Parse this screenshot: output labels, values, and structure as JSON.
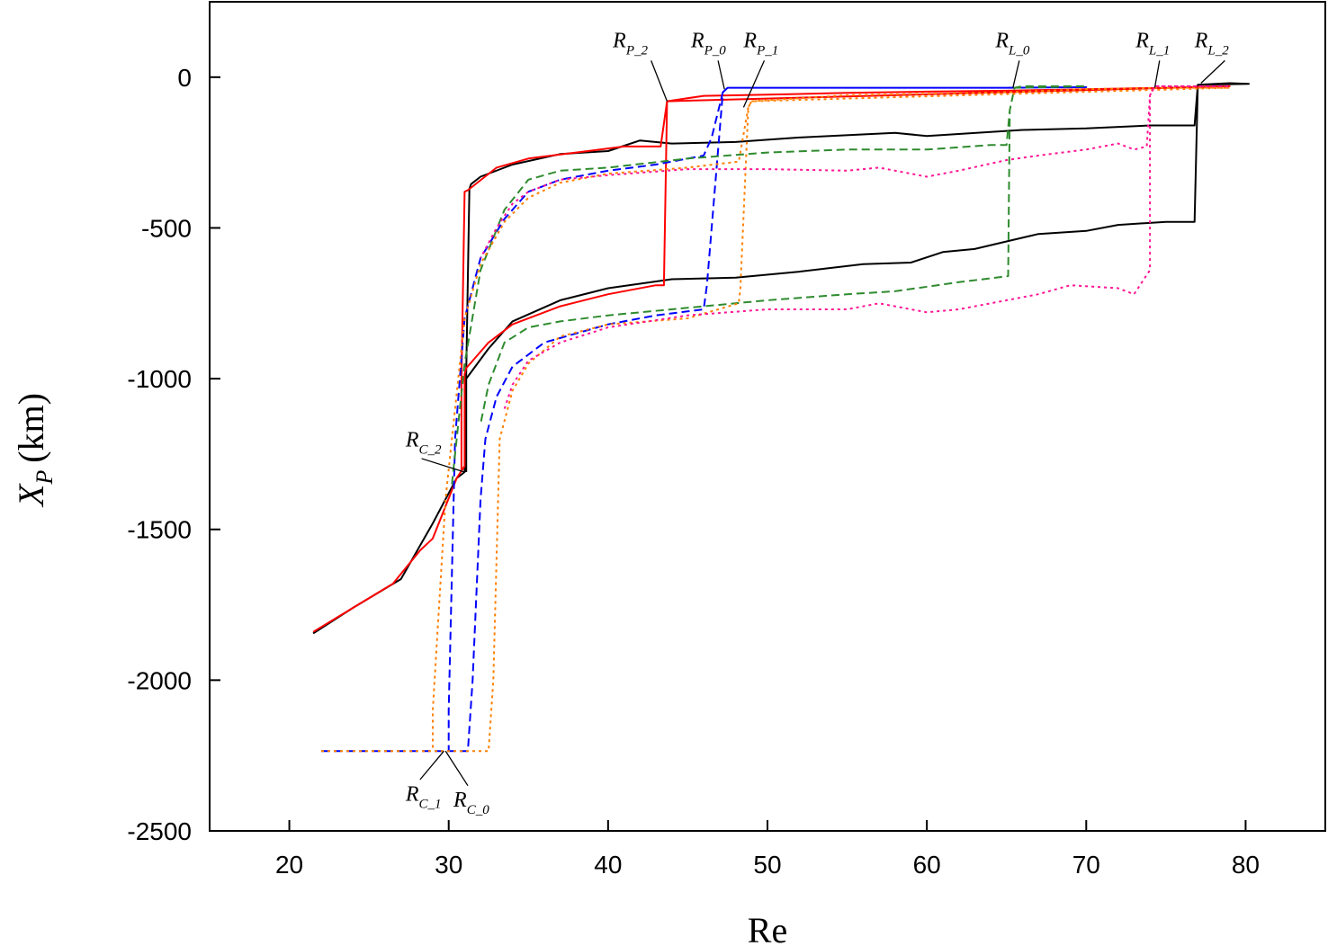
{
  "chart_data": {
    "type": "line",
    "xlabel": "Re",
    "ylabel_main": "X",
    "ylabel_sub": "P",
    "ylabel_unit": "(km)",
    "xlim": [
      15,
      85
    ],
    "ylim": [
      -2500,
      250
    ],
    "x_ticks": [
      20,
      30,
      40,
      50,
      60,
      70,
      80
    ],
    "y_ticks": [
      0,
      -500,
      -1000,
      -1500,
      -2000,
      -2500
    ],
    "x_tick_labels": [
      "20",
      "30",
      "40",
      "50",
      "60",
      "70",
      "80"
    ],
    "y_tick_labels": [
      "0",
      "-500",
      "-1000",
      "-1500",
      "-2000",
      "-2500"
    ],
    "grid": false,
    "legend": "none",
    "series": [
      {
        "color": "#000000",
        "dash": "solid",
        "points": [
          [
            21.5,
            -1845
          ],
          [
            24,
            -1760
          ],
          [
            27,
            -1665
          ],
          [
            29,
            -1480
          ],
          [
            30.5,
            -1330
          ],
          [
            31,
            -1310
          ],
          [
            31.1,
            -980
          ],
          [
            31.3,
            -370
          ],
          [
            31.4,
            -355
          ],
          [
            32,
            -330
          ],
          [
            34,
            -290
          ],
          [
            37,
            -255
          ],
          [
            40,
            -245
          ],
          [
            42,
            -210
          ],
          [
            44,
            -220
          ],
          [
            48,
            -215
          ],
          [
            52,
            -200
          ],
          [
            58,
            -185
          ],
          [
            60,
            -195
          ],
          [
            66,
            -175
          ],
          [
            70,
            -170
          ],
          [
            74,
            -160
          ],
          [
            76.8,
            -160
          ],
          [
            77,
            -25
          ],
          [
            79,
            -20
          ],
          [
            80.2,
            -22
          ],
          [
            77,
            -25
          ],
          [
            76.8,
            -480
          ],
          [
            75,
            -480
          ],
          [
            72,
            -490
          ],
          [
            70,
            -510
          ],
          [
            67,
            -520
          ],
          [
            65,
            -545
          ],
          [
            63,
            -570
          ],
          [
            61,
            -580
          ],
          [
            59,
            -615
          ],
          [
            56,
            -620
          ],
          [
            52,
            -645
          ],
          [
            48,
            -665
          ],
          [
            44,
            -670
          ],
          [
            40,
            -700
          ],
          [
            37,
            -740
          ],
          [
            34,
            -810
          ],
          [
            32.5,
            -900
          ],
          [
            31.1,
            -1000
          ],
          [
            31.1,
            -1310
          ]
        ]
      },
      {
        "color": "#ff0000",
        "dash": "solid",
        "points": [
          [
            21.5,
            -1840
          ],
          [
            24,
            -1760
          ],
          [
            26.5,
            -1680
          ],
          [
            28.2,
            -1570
          ],
          [
            29,
            -1530
          ],
          [
            30.5,
            -1330
          ],
          [
            31,
            -1290
          ],
          [
            31,
            -985
          ],
          [
            31.1,
            -965
          ],
          [
            32.5,
            -880
          ],
          [
            34,
            -820
          ],
          [
            37,
            -760
          ],
          [
            40,
            -720
          ],
          [
            43,
            -690
          ],
          [
            43.5,
            -690
          ],
          [
            43.7,
            -80
          ],
          [
            46,
            -62
          ],
          [
            50,
            -58
          ],
          [
            55,
            -52
          ],
          [
            60,
            -48
          ],
          [
            65,
            -45
          ],
          [
            70,
            -40
          ],
          [
            75,
            -35
          ],
          [
            79,
            -30
          ],
          [
            43.7,
            -80
          ],
          [
            43.3,
            -230
          ],
          [
            41,
            -230
          ],
          [
            38,
            -250
          ],
          [
            35,
            -270
          ],
          [
            33,
            -300
          ],
          [
            31.2,
            -375
          ],
          [
            31,
            -380
          ],
          [
            30.8,
            -1000
          ],
          [
            30.8,
            -1310
          ]
        ]
      },
      {
        "color": "#0000ff",
        "dash": "dashed",
        "points": [
          [
            22,
            -2235
          ],
          [
            31.2,
            -2235
          ],
          [
            31.5,
            -2000
          ],
          [
            32,
            -1400
          ],
          [
            32.3,
            -1200
          ],
          [
            33,
            -1060
          ],
          [
            34,
            -960
          ],
          [
            36,
            -880
          ],
          [
            40,
            -820
          ],
          [
            43,
            -790
          ],
          [
            46,
            -770
          ],
          [
            46.2,
            -690
          ],
          [
            47.2,
            -50
          ],
          [
            47.5,
            -35
          ],
          [
            55,
            -35
          ],
          [
            65,
            -35
          ],
          [
            70,
            -33
          ],
          [
            65,
            -35
          ],
          [
            47.5,
            -35
          ],
          [
            47.2,
            -50
          ],
          [
            46.5,
            -200
          ],
          [
            46,
            -260
          ],
          [
            43,
            -290
          ],
          [
            40,
            -310
          ],
          [
            37,
            -340
          ],
          [
            35,
            -380
          ],
          [
            33.5,
            -470
          ],
          [
            32,
            -600
          ],
          [
            31,
            -800
          ],
          [
            30.4,
            -1200
          ],
          [
            30,
            -2100
          ],
          [
            30,
            -2235
          ]
        ]
      },
      {
        "color": "#2e8b2e",
        "dash": "dashed",
        "points": [
          [
            30.2,
            -1350
          ],
          [
            31,
            -950
          ],
          [
            32,
            -640
          ],
          [
            33.5,
            -440
          ],
          [
            35,
            -340
          ],
          [
            37,
            -310
          ],
          [
            40,
            -300
          ],
          [
            45,
            -270
          ],
          [
            50,
            -250
          ],
          [
            55,
            -240
          ],
          [
            60,
            -240
          ],
          [
            64,
            -225
          ],
          [
            65,
            -225
          ],
          [
            65.2,
            -110
          ],
          [
            65.5,
            -35
          ],
          [
            66,
            -30
          ],
          [
            70,
            -30
          ],
          [
            65.5,
            -35
          ],
          [
            65.2,
            -110
          ],
          [
            65.1,
            -660
          ],
          [
            62,
            -680
          ],
          [
            58,
            -710
          ],
          [
            55,
            -720
          ],
          [
            50,
            -740
          ],
          [
            45,
            -765
          ],
          [
            40,
            -790
          ],
          [
            37,
            -810
          ],
          [
            35,
            -830
          ],
          [
            33.5,
            -880
          ],
          [
            32.5,
            -1020
          ],
          [
            32,
            -1150
          ]
        ]
      },
      {
        "color": "#ff7f00",
        "dash": "dotted",
        "points": [
          [
            22,
            -2235
          ],
          [
            32.5,
            -2235
          ],
          [
            32.8,
            -2000
          ],
          [
            33.2,
            -1200
          ],
          [
            34,
            -1040
          ],
          [
            35,
            -950
          ],
          [
            37,
            -860
          ],
          [
            40,
            -820
          ],
          [
            45,
            -800
          ],
          [
            48.2,
            -750
          ],
          [
            48.3,
            -700
          ],
          [
            48.8,
            -100
          ],
          [
            49,
            -80
          ],
          [
            55,
            -60
          ],
          [
            65,
            -50
          ],
          [
            70,
            -40
          ],
          [
            75,
            -35
          ],
          [
            79,
            -35
          ],
          [
            49,
            -80
          ],
          [
            48.8,
            -100
          ],
          [
            48.2,
            -280
          ],
          [
            45,
            -300
          ],
          [
            40,
            -320
          ],
          [
            37,
            -350
          ],
          [
            35,
            -400
          ],
          [
            33.5,
            -480
          ],
          [
            32,
            -620
          ],
          [
            31,
            -800
          ],
          [
            30.4,
            -1100
          ],
          [
            29.8,
            -1400
          ],
          [
            29,
            -2100
          ],
          [
            29,
            -2235
          ]
        ]
      },
      {
        "color": "#ff1493",
        "dash": "dotted",
        "points": [
          [
            33.5,
            -1100
          ],
          [
            34,
            -1020
          ],
          [
            35,
            -940
          ],
          [
            37,
            -880
          ],
          [
            40,
            -830
          ],
          [
            45,
            -790
          ],
          [
            50,
            -770
          ],
          [
            55,
            -770
          ],
          [
            57,
            -750
          ],
          [
            60,
            -780
          ],
          [
            62,
            -770
          ],
          [
            64,
            -750
          ],
          [
            67,
            -720
          ],
          [
            69,
            -690
          ],
          [
            72,
            -700
          ],
          [
            73,
            -720
          ],
          [
            74,
            -640
          ],
          [
            74,
            -500
          ],
          [
            74,
            -60
          ],
          [
            74.3,
            -30
          ],
          [
            77,
            -30
          ],
          [
            79,
            -30
          ],
          [
            74.3,
            -30
          ],
          [
            74,
            -60
          ],
          [
            73.8,
            -230
          ],
          [
            73,
            -240
          ],
          [
            72,
            -220
          ],
          [
            70,
            -240
          ],
          [
            67,
            -260
          ],
          [
            65,
            -275
          ],
          [
            62,
            -310
          ],
          [
            60,
            -330
          ],
          [
            57,
            -300
          ],
          [
            55,
            -310
          ],
          [
            50,
            -305
          ],
          [
            45,
            -305
          ],
          [
            40,
            -325
          ],
          [
            37,
            -340
          ],
          [
            35,
            -380
          ],
          [
            34,
            -420
          ],
          [
            33,
            -500
          ],
          [
            32,
            -600
          ]
        ]
      }
    ],
    "annotations": [
      {
        "main": "R",
        "sub": "P_2",
        "x": 40.3,
        "y": 100,
        "lx1": 42.7,
        "ly1": 55,
        "lx2": 43.7,
        "ly2": -80
      },
      {
        "main": "R",
        "sub": "P_0",
        "x": 45.2,
        "y": 100,
        "lx1": 46.9,
        "ly1": 55,
        "lx2": 47.3,
        "ly2": -40
      },
      {
        "main": "R",
        "sub": "P_1",
        "x": 48.5,
        "y": 100,
        "lx1": 49.8,
        "ly1": 55,
        "lx2": 48.5,
        "ly2": -100
      },
      {
        "main": "R",
        "sub": "L_0",
        "x": 64.3,
        "y": 100,
        "lx1": 65.8,
        "ly1": 55,
        "lx2": 65.4,
        "ly2": -35
      },
      {
        "main": "R",
        "sub": "L_1",
        "x": 73.1,
        "y": 100,
        "lx1": 74.6,
        "ly1": 55,
        "lx2": 74.3,
        "ly2": -35
      },
      {
        "main": "R",
        "sub": "L_2",
        "x": 76.8,
        "y": 100,
        "lx1": 78.7,
        "ly1": 55,
        "lx2": 77.2,
        "ly2": -20
      },
      {
        "main": "R",
        "sub": "C_2",
        "x": 27.3,
        "y": -1225,
        "lx1": 28.3,
        "ly1": -1265,
        "lx2": 31,
        "ly2": -1310
      },
      {
        "main": "R",
        "sub": "C_1",
        "x": 27.3,
        "y": -2400,
        "lx1": 28.2,
        "ly1": -2330,
        "lx2": 29.7,
        "ly2": -2235
      },
      {
        "main": "R",
        "sub": "C_0",
        "x": 30.3,
        "y": -2420,
        "lx1": 31.2,
        "ly1": -2350,
        "lx2": 29.8,
        "ly2": -2235
      }
    ]
  }
}
